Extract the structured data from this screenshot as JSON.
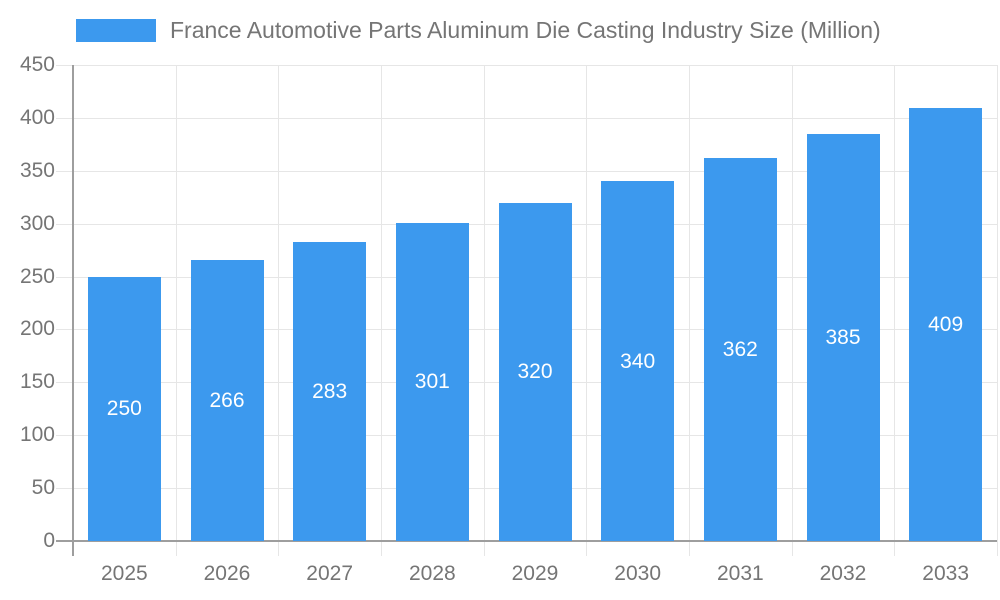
{
  "chart_data": {
    "type": "bar",
    "title": "France Automotive Parts Aluminum Die Casting Industry Size (Million)",
    "legend": {
      "position": "top",
      "label": "France Automotive Parts Aluminum Die Casting Industry Size (Million)"
    },
    "categories": [
      "2025",
      "2026",
      "2027",
      "2028",
      "2029",
      "2030",
      "2031",
      "2032",
      "2033"
    ],
    "values": [
      250,
      266,
      283,
      301,
      320,
      340,
      362,
      385,
      409
    ],
    "xlabel": "",
    "ylabel": "",
    "ylim": [
      0,
      450
    ],
    "ytick_step": 50,
    "ytick_labels": [
      "0",
      "50",
      "100",
      "150",
      "200",
      "250",
      "300",
      "350",
      "400",
      "450"
    ],
    "grid": {
      "horizontal": true,
      "vertical": true
    },
    "colors": {
      "bar": "#3C99EE",
      "bar_label": "#FFFFFF",
      "axis_text": "#757575",
      "title_text": "#757575",
      "gridline": "#E6E6E6",
      "axis_line": "#9E9E9E",
      "background": "#FFFFFF"
    }
  }
}
